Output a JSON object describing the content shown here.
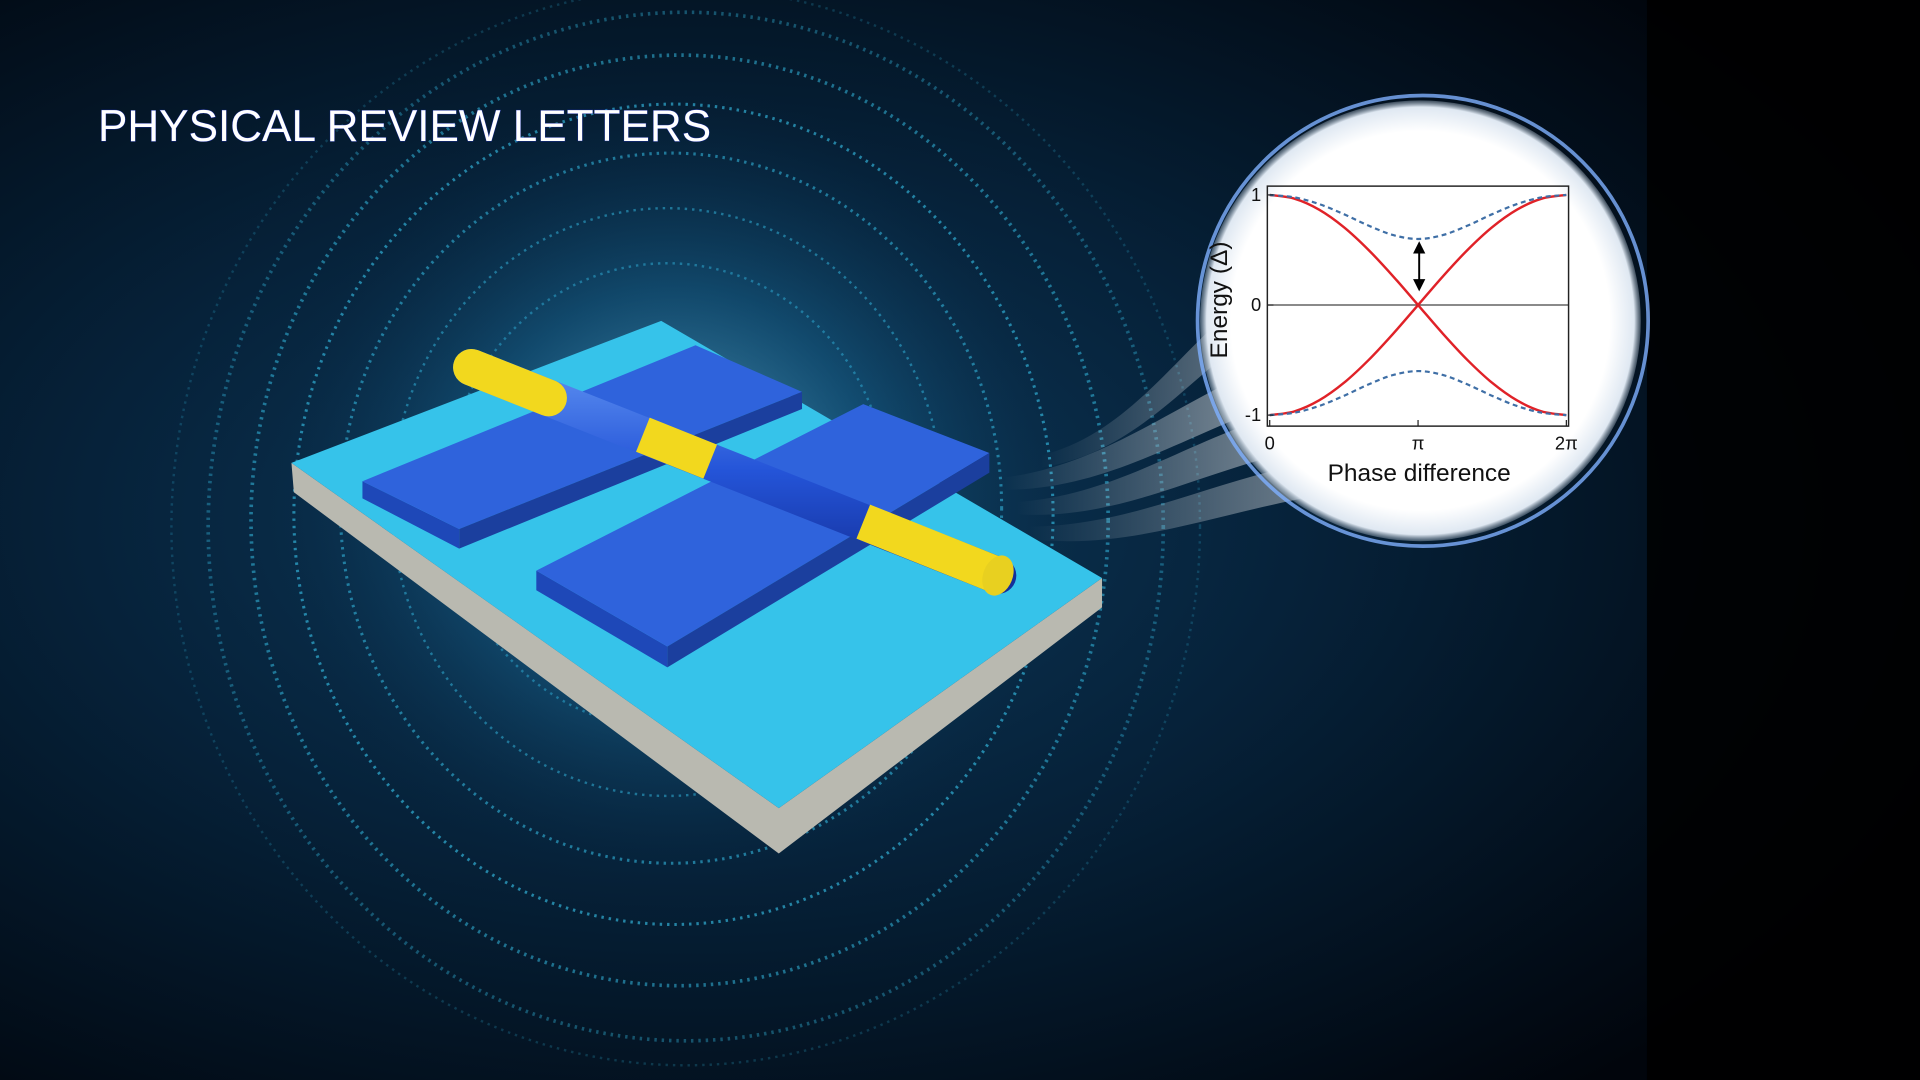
{
  "header": {
    "title": "PHYSICAL REVIEW LETTERS"
  },
  "chart_data": {
    "type": "line",
    "xlabel": "Phase difference",
    "ylabel": "Energy (Δ)",
    "x": [
      0,
      0.524,
      1.047,
      1.571,
      2.094,
      2.618,
      3.142,
      3.665,
      4.189,
      4.712,
      5.236,
      5.76,
      6.283
    ],
    "series": [
      {
        "color": "#e02228",
        "dashed": false,
        "values": [
          1,
          0.966,
          0.866,
          0.707,
          0.5,
          0.259,
          0,
          -0.259,
          -0.5,
          -0.707,
          -0.866,
          -0.966,
          -1
        ]
      },
      {
        "color": "#e02228",
        "dashed": false,
        "values": [
          -1,
          -0.966,
          -0.866,
          -0.707,
          -0.5,
          -0.259,
          0,
          0.259,
          0.5,
          0.707,
          0.866,
          0.966,
          1
        ]
      },
      {
        "color": "#3f6fa6",
        "dashed": true,
        "values": [
          1,
          0.978,
          0.917,
          0.825,
          0.721,
          0.635,
          0.6,
          0.635,
          0.721,
          0.825,
          0.917,
          0.978,
          1
        ]
      },
      {
        "color": "#3f6fa6",
        "dashed": true,
        "values": [
          -1,
          -0.978,
          -0.917,
          -0.825,
          -0.721,
          -0.635,
          -0.6,
          -0.635,
          -0.721,
          -0.825,
          -0.917,
          -0.978,
          -1
        ]
      }
    ],
    "xlim": [
      -0.05,
      6.33
    ],
    "ylim": [
      -1.1,
      1.08
    ],
    "xticks": [
      {
        "value": 0,
        "label": "0"
      },
      {
        "value": 3.142,
        "label": "π"
      },
      {
        "value": 6.283,
        "label": "2π"
      }
    ],
    "yticks": [
      -1,
      0,
      1
    ],
    "zero_line": true
  }
}
